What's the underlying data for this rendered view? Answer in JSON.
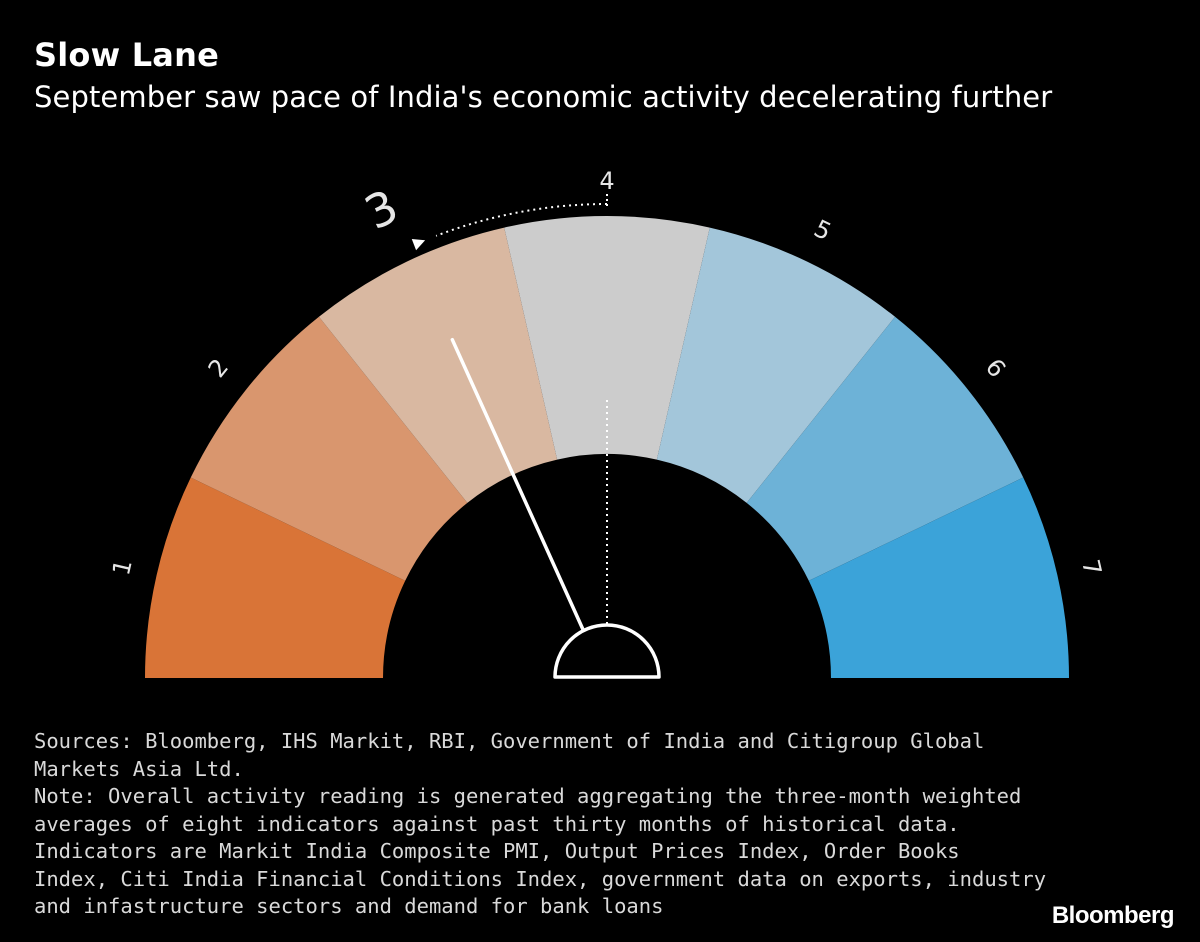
{
  "title": "Slow Lane",
  "subtitle": "September saw pace of India's economic activity decelerating further",
  "chart_data": {
    "type": "gauge",
    "scale_min": 1,
    "scale_max": 7,
    "segments": [
      {
        "label": "1",
        "color": "#d97437"
      },
      {
        "label": "2",
        "color": "#d9966e"
      },
      {
        "label": "3",
        "color": "#d9b8a1"
      },
      {
        "label": "4",
        "color": "#cccccc"
      },
      {
        "label": "5",
        "color": "#a3c6da"
      },
      {
        "label": "6",
        "color": "#6db2d7"
      },
      {
        "label": "7",
        "color": "#3ba3d9"
      }
    ],
    "current_value": 3,
    "previous_value": 4,
    "current_label": "3",
    "annotation": "dotted arrow from previous reading 4 to current reading 3"
  },
  "footnotes": [
    "Sources: Bloomberg, IHS Markit, RBI, Government of India and Citigroup Global",
    "Markets Asia Ltd.",
    "Note: Overall activity reading is generated aggregating the three-month weighted",
    "averages of eight indicators against past thirty months of historical data.",
    "Indicators are Markit India Composite PMI, Output Prices Index, Order Books",
    "Index, Citi India Financial Conditions Index, government data on exports, industry",
    "and infastructure sectors and demand for bank loans"
  ],
  "logo": "Bloomberg"
}
